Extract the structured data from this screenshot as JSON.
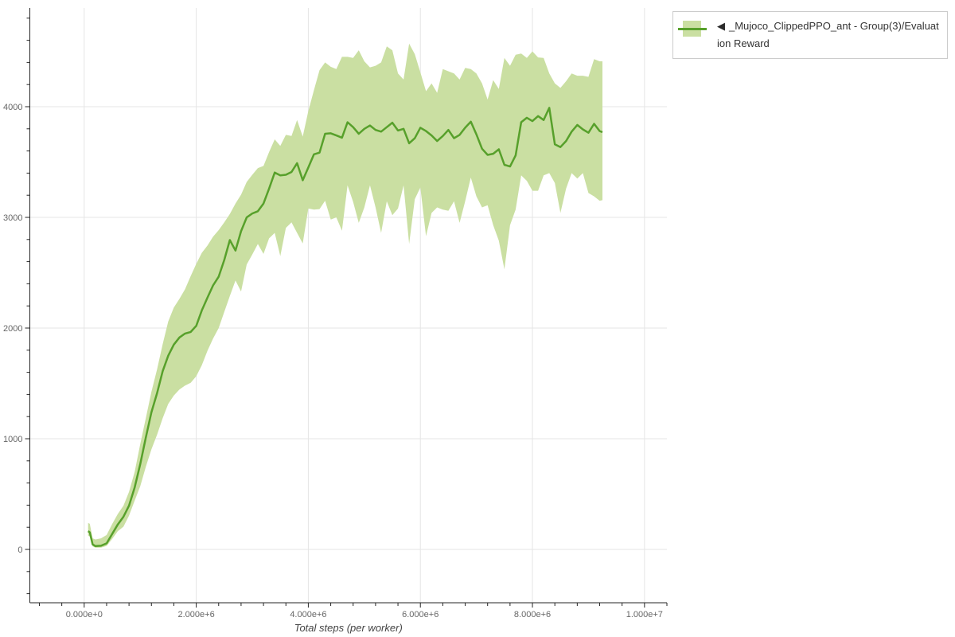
{
  "page": {
    "background": "#ffffff"
  },
  "colors": {
    "line": "#57a02b",
    "band": "#cadfa2",
    "grid": "#e5e5e5",
    "axis": "#262626",
    "tick_label": "#666666",
    "axis_title": "#444444",
    "legend_border": "#cccccc",
    "legend_text": "#333333"
  },
  "legend": {
    "items": [
      {
        "marker": "◀",
        "label": "_Mujoco_ClippedPPO_ant - Group(3)/Evaluation Reward"
      }
    ]
  },
  "chart_data": {
    "type": "line",
    "title": "",
    "xlabel": "Total steps (per worker)",
    "ylabel": "",
    "x_range": [
      -970000,
      10400000
    ],
    "y_range": [
      -482,
      4892
    ],
    "grid": true,
    "legend_position": "top-right-outside",
    "x_ticks": [
      {
        "value": 0,
        "label": "0.000e+0"
      },
      {
        "value": 2000000,
        "label": "2.000e+6"
      },
      {
        "value": 4000000,
        "label": "4.000e+6"
      },
      {
        "value": 6000000,
        "label": "6.000e+6"
      },
      {
        "value": 8000000,
        "label": "8.000e+6"
      },
      {
        "value": 10000000,
        "label": "1.000e+7"
      }
    ],
    "y_ticks": [
      {
        "value": 0,
        "label": "0"
      },
      {
        "value": 1000,
        "label": "1000"
      },
      {
        "value": 2000,
        "label": "2000"
      },
      {
        "value": 3000,
        "label": "3000"
      },
      {
        "value": 4000,
        "label": "4000"
      }
    ],
    "x_minor_step": 400000,
    "y_minor_step": 200,
    "series": [
      {
        "name": "_Mujoco_ClippedPPO_ant - Group(3)/Evaluation Reward",
        "marker": "◀",
        "line_color": "#57a02b",
        "band_color": "#cadfa2",
        "x": [
          70000,
          100000,
          150000,
          200000,
          300000,
          400000,
          500000,
          600000,
          700000,
          800000,
          900000,
          1000000,
          1100000,
          1200000,
          1300000,
          1400000,
          1500000,
          1600000,
          1700000,
          1800000,
          1900000,
          2000000,
          2100000,
          2200000,
          2300000,
          2400000,
          2500000,
          2600000,
          2700000,
          2800000,
          2900000,
          3000000,
          3100000,
          3200000,
          3300000,
          3400000,
          3500000,
          3600000,
          3700000,
          3800000,
          3900000,
          4000000,
          4100000,
          4200000,
          4300000,
          4400000,
          4500000,
          4600000,
          4700000,
          4800000,
          4900000,
          5000000,
          5100000,
          5200000,
          5300000,
          5400000,
          5500000,
          5600000,
          5700000,
          5800000,
          5900000,
          6000000,
          6100000,
          6200000,
          6300000,
          6400000,
          6500000,
          6600000,
          6700000,
          6800000,
          6900000,
          7000000,
          7100000,
          7200000,
          7300000,
          7400000,
          7500000,
          7600000,
          7700000,
          7800000,
          7900000,
          8000000,
          8100000,
          8200000,
          8300000,
          8400000,
          8500000,
          8600000,
          8700000,
          8800000,
          8900000,
          9000000,
          9100000,
          9200000,
          9250000
        ],
        "mean": [
          165,
          155,
          45,
          30,
          33,
          55,
          140,
          225,
          295,
          395,
          560,
          770,
          1010,
          1240,
          1410,
          1610,
          1750,
          1850,
          1915,
          1950,
          1965,
          2020,
          2160,
          2275,
          2385,
          2465,
          2615,
          2795,
          2700,
          2875,
          3000,
          3035,
          3055,
          3125,
          3260,
          3405,
          3380,
          3385,
          3410,
          3490,
          3335,
          3450,
          3570,
          3585,
          3755,
          3760,
          3740,
          3720,
          3860,
          3815,
          3755,
          3800,
          3830,
          3790,
          3775,
          3815,
          3855,
          3785,
          3800,
          3670,
          3715,
          3810,
          3780,
          3740,
          3690,
          3735,
          3790,
          3715,
          3745,
          3810,
          3865,
          3750,
          3620,
          3565,
          3575,
          3615,
          3475,
          3460,
          3560,
          3860,
          3900,
          3870,
          3915,
          3880,
          3990,
          3660,
          3635,
          3690,
          3775,
          3835,
          3795,
          3765,
          3845,
          3780,
          3770
        ],
        "lower": [
          125,
          118,
          28,
          15,
          16,
          32,
          95,
          165,
          205,
          305,
          440,
          570,
          745,
          905,
          1035,
          1185,
          1315,
          1390,
          1445,
          1480,
          1505,
          1565,
          1665,
          1795,
          1905,
          2000,
          2145,
          2290,
          2430,
          2330,
          2575,
          2665,
          2760,
          2670,
          2810,
          2860,
          2650,
          2905,
          2955,
          2860,
          2765,
          3080,
          3070,
          3075,
          3150,
          2980,
          3000,
          2880,
          3290,
          3140,
          2950,
          3090,
          3290,
          3090,
          2860,
          3145,
          3020,
          3080,
          3290,
          2760,
          3165,
          3270,
          2830,
          3040,
          3090,
          3070,
          3060,
          3145,
          2950,
          3145,
          3360,
          3190,
          3090,
          3110,
          2930,
          2790,
          2530,
          2930,
          3070,
          3380,
          3330,
          3240,
          3240,
          3380,
          3400,
          3310,
          3040,
          3260,
          3400,
          3350,
          3400,
          3220,
          3190,
          3150,
          3155
        ],
        "upper": [
          238,
          232,
          100,
          90,
          100,
          130,
          230,
          320,
          395,
          520,
          700,
          950,
          1185,
          1425,
          1625,
          1855,
          2060,
          2185,
          2265,
          2350,
          2470,
          2580,
          2680,
          2745,
          2825,
          2885,
          2955,
          3030,
          3125,
          3205,
          3320,
          3385,
          3445,
          3465,
          3590,
          3705,
          3645,
          3745,
          3735,
          3880,
          3730,
          3960,
          4150,
          4330,
          4400,
          4360,
          4340,
          4450,
          4450,
          4440,
          4510,
          4410,
          4355,
          4370,
          4400,
          4545,
          4510,
          4300,
          4245,
          4570,
          4475,
          4310,
          4140,
          4210,
          4125,
          4340,
          4320,
          4300,
          4245,
          4350,
          4340,
          4300,
          4210,
          4065,
          4240,
          4160,
          4440,
          4370,
          4470,
          4480,
          4440,
          4500,
          4445,
          4440,
          4300,
          4210,
          4170,
          4230,
          4300,
          4280,
          4280,
          4270,
          4430,
          4410,
          4410
        ]
      }
    ]
  }
}
